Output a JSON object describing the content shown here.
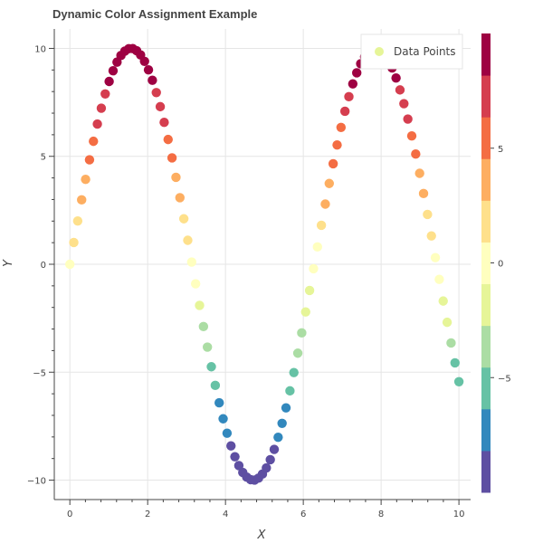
{
  "chart_data": {
    "type": "scatter",
    "title": "Dynamic Color Assignment Example",
    "xlabel": "X",
    "ylabel": "Y",
    "xlim": [
      -0.4,
      10.3
    ],
    "ylim": [
      -10.9,
      10.9
    ],
    "xticks": [
      0,
      2,
      4,
      6,
      8,
      10
    ],
    "yticks": [
      -10,
      -5,
      0,
      5,
      10
    ],
    "xtick_labels": [
      "0",
      "2",
      "4",
      "6",
      "8",
      "10"
    ],
    "ytick_labels": [
      "−10",
      "−5",
      "0",
      "5",
      "10"
    ],
    "grid": true,
    "legend": {
      "position": "top-right",
      "entries": [
        "Data Points"
      ]
    },
    "series": [
      {
        "name": "Data Points",
        "x_start": 0,
        "x_end": 10,
        "count": 100,
        "formula": "10*sin(x)"
      }
    ],
    "colorbar": {
      "palette": "Spectral11",
      "low": -10,
      "high": 10,
      "colors": [
        "#5e4fa2",
        "#3288bd",
        "#66c2a5",
        "#abdda4",
        "#e6f598",
        "#ffffbf",
        "#fee08b",
        "#fdae61",
        "#f46d43",
        "#d53e4f",
        "#9e0142"
      ],
      "ticks": [
        -5,
        0,
        5
      ],
      "tick_labels": [
        "−5",
        "0",
        "5"
      ]
    }
  }
}
